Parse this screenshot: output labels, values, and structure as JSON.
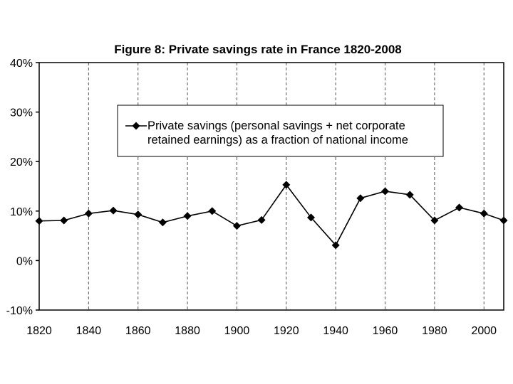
{
  "chart_data": {
    "type": "line",
    "title": "Figure 8: Private savings rate in France 1820-2008",
    "xlabel": "",
    "ylabel": "",
    "xlim": [
      1820,
      2008
    ],
    "ylim": [
      -10,
      40
    ],
    "x_ticks": [
      1820,
      1840,
      1860,
      1880,
      1900,
      1920,
      1940,
      1960,
      1980,
      2000
    ],
    "x_tick_labels": [
      "1820",
      "1840",
      "1860",
      "1880",
      "1900",
      "1920",
      "1940",
      "1960",
      "1980",
      "2000"
    ],
    "y_ticks": [
      -10,
      0,
      10,
      20,
      30,
      40
    ],
    "y_tick_labels": [
      "-10%",
      "0%",
      "10%",
      "20%",
      "30%",
      "40%"
    ],
    "grid": "vertical dashed at x ticks",
    "legend_position": "top-center",
    "series": [
      {
        "name": "Private savings (personal savings + net corporate retained earnings) as a fraction of national income",
        "legend_lines": [
          "Private savings (personal savings + net corporate",
          "retained earnings) as a fraction of national income"
        ],
        "color": "#000000",
        "marker": "diamond",
        "x": [
          1820,
          1830,
          1840,
          1850,
          1860,
          1870,
          1880,
          1890,
          1900,
          1910,
          1920,
          1930,
          1940,
          1950,
          1960,
          1970,
          1980,
          1990,
          2000,
          2008
        ],
        "y": [
          8.0,
          8.1,
          9.5,
          10.1,
          9.3,
          7.7,
          9.0,
          10.0,
          7.0,
          8.2,
          15.3,
          8.7,
          3.1,
          12.6,
          14.0,
          13.3,
          8.1,
          10.7,
          9.5,
          8.1
        ]
      }
    ]
  }
}
